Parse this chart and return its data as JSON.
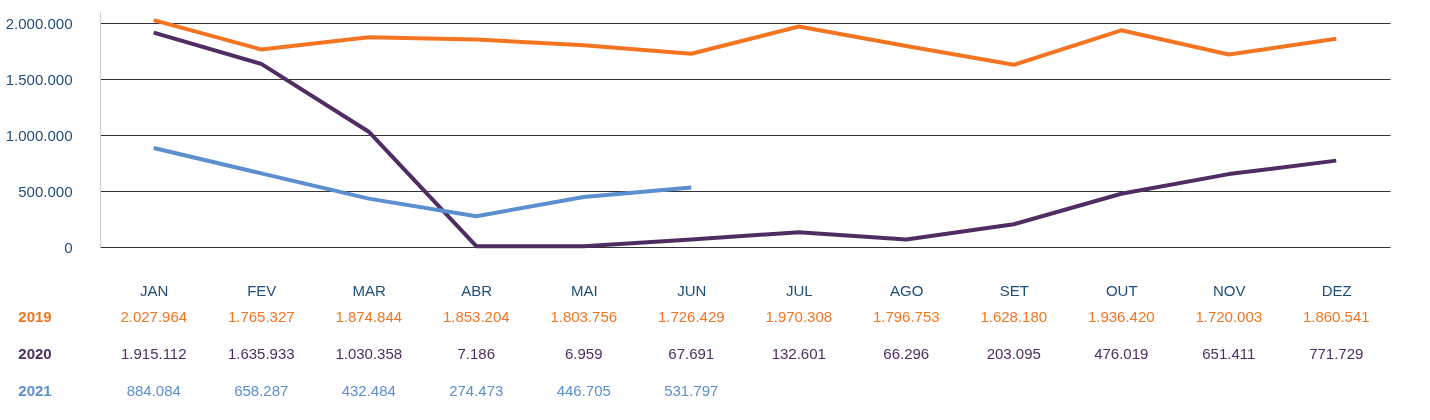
{
  "chart_data": {
    "type": "line",
    "categories": [
      "JAN",
      "FEV",
      "MAR",
      "ABR",
      "MAI",
      "JUN",
      "JUL",
      "AGO",
      "SET",
      "OUT",
      "NOV",
      "DEZ"
    ],
    "series": [
      {
        "name": "2019",
        "color": "#f47521",
        "values": [
          2027964,
          1765327,
          1874844,
          1853204,
          1803756,
          1726429,
          1970308,
          1796753,
          1628180,
          1936420,
          1720003,
          1860541
        ],
        "value_labels": [
          "2.027.964",
          "1.765.327",
          "1.874.844",
          "1.853.204",
          "1.803.756",
          "1.726.429",
          "1.970.308",
          "1.796.753",
          "1.628.180",
          "1.936.420",
          "1.720.003",
          "1.860.541"
        ]
      },
      {
        "name": "2020",
        "color": "#4f2d63",
        "values": [
          1915112,
          1635933,
          1030358,
          7186,
          6959,
          67691,
          132601,
          66296,
          203095,
          476019,
          651411,
          771729
        ],
        "value_labels": [
          "1.915.112",
          "1.635.933",
          "1.030.358",
          "7.186",
          "6.959",
          "67.691",
          "132.601",
          "66.296",
          "203.095",
          "476.019",
          "651.411",
          "771.729"
        ]
      },
      {
        "name": "2021",
        "color": "#5b8fcf",
        "values": [
          884084,
          658287,
          432484,
          274473,
          446705,
          531797,
          null,
          null,
          null,
          null,
          null,
          null
        ],
        "value_labels": [
          "884.084",
          "658.287",
          "432.484",
          "274.473",
          "446.705",
          "531.797",
          null,
          null,
          null,
          null,
          null,
          null
        ]
      }
    ],
    "ylim": [
      0,
      2100000
    ],
    "yticks": [
      0,
      {
        "value": 500000,
        "label": "500.000"
      },
      {
        "value": 1000000,
        "label": "1.000.000"
      },
      {
        "value": 1500000,
        "label": "1.500.000"
      },
      {
        "value": 2000000,
        "label": "2.000.000"
      }
    ],
    "grid": "y",
    "legend": "bottom left",
    "line_style": "solid",
    "marker": "none"
  }
}
